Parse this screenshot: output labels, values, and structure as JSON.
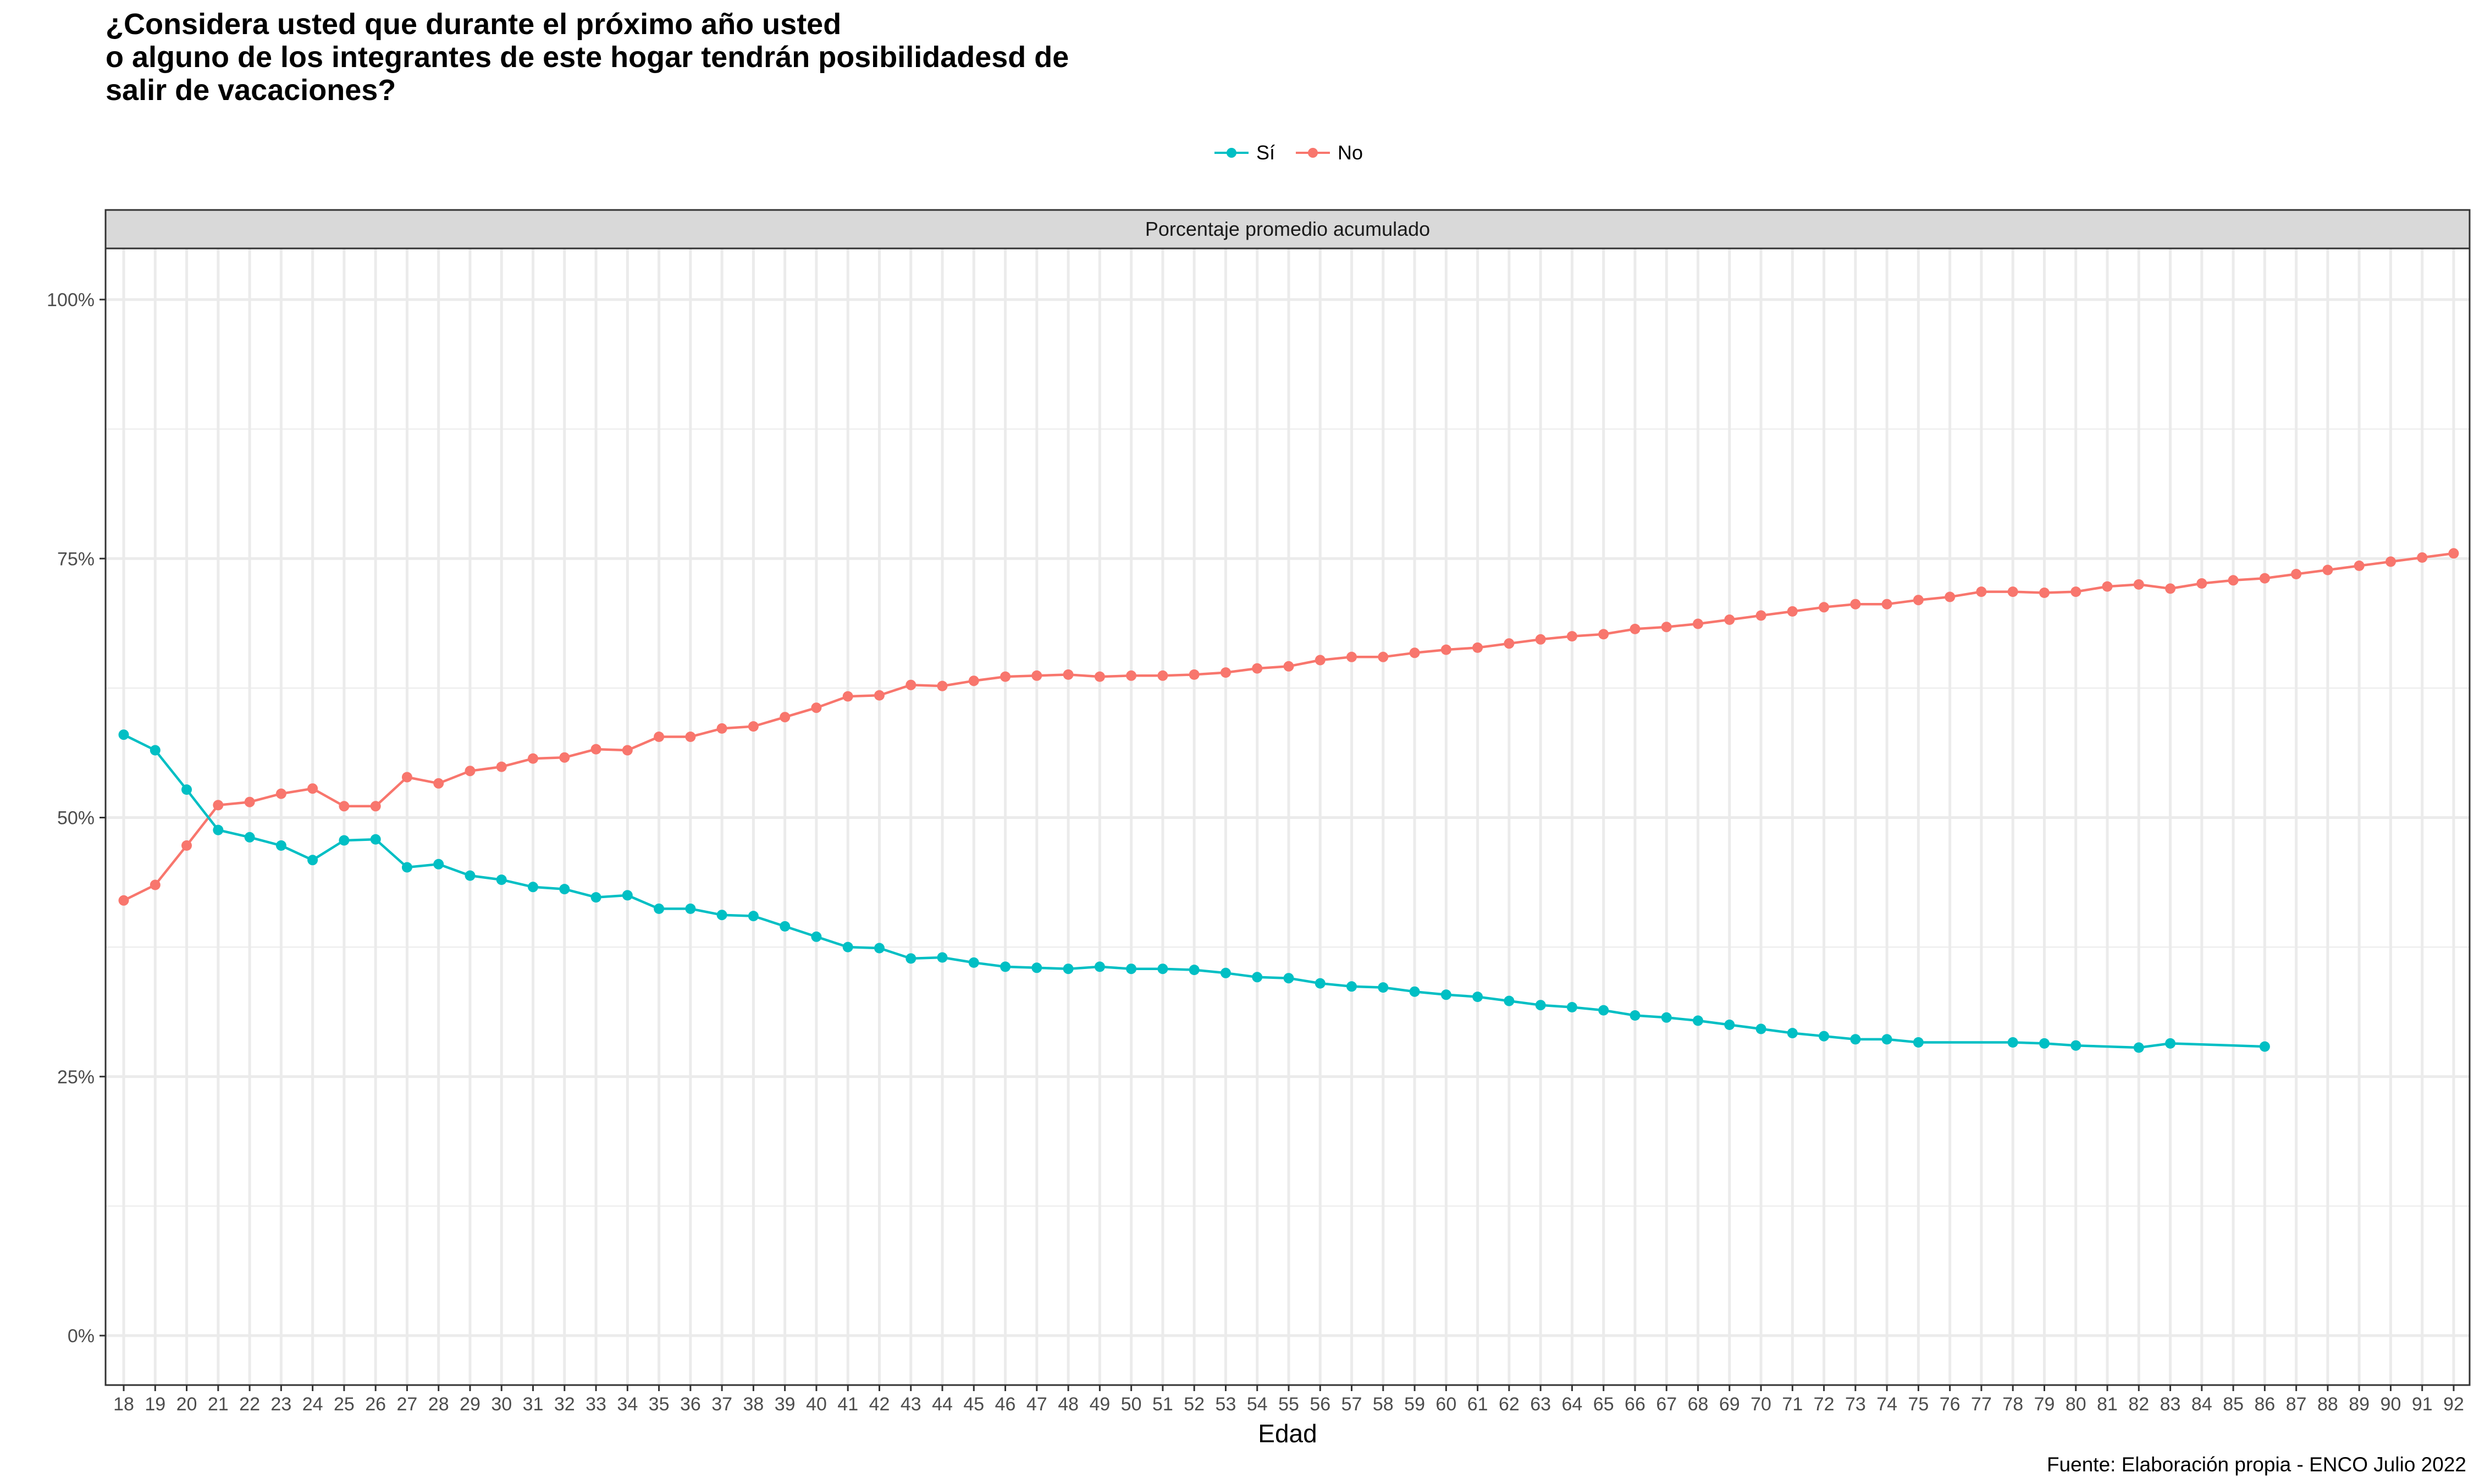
{
  "title_lines": [
    "¿Considera usted que durante el próximo año usted",
    "o alguno de los integrantes de este hogar tendrán posibilidadesd de",
    "salir de vacaciones?"
  ],
  "caption": "Fuente: Elaboración propia - ENCO Julio 2022",
  "colors": {
    "si": "#00BFC4",
    "no": "#F8766D",
    "grid": "#EBEBEB",
    "strip": "#D9D9D9",
    "panel_border": "#333333"
  },
  "chart_data": {
    "type": "line",
    "strip_label": "Porcentaje promedio acumulado",
    "xlabel": "Edad",
    "ylabel": "",
    "y_ticks": [
      "0%",
      "25%",
      "50%",
      "75%",
      "100%"
    ],
    "ylim": [
      0,
      1
    ],
    "x": [
      18,
      19,
      20,
      21,
      22,
      23,
      24,
      25,
      26,
      27,
      28,
      29,
      30,
      31,
      32,
      33,
      34,
      35,
      36,
      37,
      38,
      39,
      40,
      41,
      42,
      43,
      44,
      45,
      46,
      47,
      48,
      49,
      50,
      51,
      52,
      53,
      54,
      55,
      56,
      57,
      58,
      59,
      60,
      61,
      62,
      63,
      64,
      65,
      66,
      67,
      68,
      69,
      70,
      71,
      72,
      73,
      74,
      75,
      76,
      77,
      78,
      79,
      80,
      81,
      82,
      83,
      84,
      85,
      86,
      87,
      88,
      89,
      90,
      91,
      92
    ],
    "legend_position": "top",
    "series": [
      {
        "name": "Sí",
        "points": [
          [
            18,
            0.58
          ],
          [
            19,
            0.565
          ],
          [
            20,
            0.527
          ],
          [
            21,
            0.488
          ],
          [
            22,
            0.481
          ],
          [
            23,
            0.473
          ],
          [
            24,
            0.459
          ],
          [
            25,
            0.478
          ],
          [
            26,
            0.479
          ],
          [
            27,
            0.452
          ],
          [
            28,
            0.455
          ],
          [
            29,
            0.444
          ],
          [
            30,
            0.44
          ],
          [
            31,
            0.433
          ],
          [
            32,
            0.431
          ],
          [
            33,
            0.423
          ],
          [
            34,
            0.425
          ],
          [
            35,
            0.412
          ],
          [
            36,
            0.412
          ],
          [
            37,
            0.406
          ],
          [
            38,
            0.405
          ],
          [
            39,
            0.395
          ],
          [
            40,
            0.385
          ],
          [
            41,
            0.375
          ],
          [
            42,
            0.374
          ],
          [
            43,
            0.364
          ],
          [
            44,
            0.365
          ],
          [
            45,
            0.36
          ],
          [
            46,
            0.356
          ],
          [
            47,
            0.355
          ],
          [
            48,
            0.354
          ],
          [
            49,
            0.356
          ],
          [
            50,
            0.354
          ],
          [
            51,
            0.354
          ],
          [
            52,
            0.353
          ],
          [
            53,
            0.35
          ],
          [
            54,
            0.346
          ],
          [
            55,
            0.345
          ],
          [
            56,
            0.34
          ],
          [
            57,
            0.337
          ],
          [
            58,
            0.336
          ],
          [
            59,
            0.332
          ],
          [
            60,
            0.329
          ],
          [
            61,
            0.327
          ],
          [
            62,
            0.323
          ],
          [
            63,
            0.319
          ],
          [
            64,
            0.317
          ],
          [
            65,
            0.314
          ],
          [
            66,
            0.309
          ],
          [
            67,
            0.307
          ],
          [
            68,
            0.304
          ],
          [
            69,
            0.3
          ],
          [
            70,
            0.296
          ],
          [
            71,
            0.292
          ],
          [
            72,
            0.289
          ],
          [
            73,
            0.286
          ],
          [
            74,
            0.286
          ],
          [
            75,
            0.283
          ],
          [
            78,
            0.283
          ],
          [
            79,
            0.282
          ],
          [
            80,
            0.28
          ],
          [
            82,
            0.278
          ],
          [
            83,
            0.282
          ],
          [
            86,
            0.279
          ]
        ]
      },
      {
        "name": "No",
        "points": [
          [
            18,
            0.42
          ],
          [
            19,
            0.435
          ],
          [
            20,
            0.473
          ],
          [
            21,
            0.512
          ],
          [
            22,
            0.515
          ],
          [
            23,
            0.523
          ],
          [
            24,
            0.528
          ],
          [
            25,
            0.511
          ],
          [
            26,
            0.511
          ],
          [
            27,
            0.539
          ],
          [
            28,
            0.533
          ],
          [
            29,
            0.545
          ],
          [
            30,
            0.549
          ],
          [
            31,
            0.557
          ],
          [
            32,
            0.558
          ],
          [
            33,
            0.566
          ],
          [
            34,
            0.565
          ],
          [
            35,
            0.578
          ],
          [
            36,
            0.578
          ],
          [
            37,
            0.586
          ],
          [
            38,
            0.588
          ],
          [
            39,
            0.597
          ],
          [
            40,
            0.606
          ],
          [
            41,
            0.617
          ],
          [
            42,
            0.618
          ],
          [
            43,
            0.628
          ],
          [
            44,
            0.627
          ],
          [
            45,
            0.632
          ],
          [
            46,
            0.636
          ],
          [
            47,
            0.637
          ],
          [
            48,
            0.638
          ],
          [
            49,
            0.636
          ],
          [
            50,
            0.637
          ],
          [
            51,
            0.637
          ],
          [
            52,
            0.638
          ],
          [
            53,
            0.64
          ],
          [
            54,
            0.644
          ],
          [
            55,
            0.646
          ],
          [
            56,
            0.652
          ],
          [
            57,
            0.655
          ],
          [
            58,
            0.655
          ],
          [
            59,
            0.659
          ],
          [
            60,
            0.662
          ],
          [
            61,
            0.664
          ],
          [
            62,
            0.668
          ],
          [
            63,
            0.672
          ],
          [
            64,
            0.675
          ],
          [
            65,
            0.677
          ],
          [
            66,
            0.682
          ],
          [
            67,
            0.684
          ],
          [
            68,
            0.687
          ],
          [
            69,
            0.691
          ],
          [
            70,
            0.695
          ],
          [
            71,
            0.699
          ],
          [
            72,
            0.703
          ],
          [
            73,
            0.706
          ],
          [
            74,
            0.706
          ],
          [
            75,
            0.71
          ],
          [
            76,
            0.713
          ],
          [
            77,
            0.718
          ],
          [
            78,
            0.718
          ],
          [
            79,
            0.717
          ],
          [
            80,
            0.718
          ],
          [
            81,
            0.723
          ],
          [
            82,
            0.725
          ],
          [
            83,
            0.721
          ],
          [
            84,
            0.726
          ],
          [
            85,
            0.729
          ],
          [
            86,
            0.731
          ],
          [
            87,
            0.735
          ],
          [
            88,
            0.739
          ],
          [
            89,
            0.743
          ],
          [
            90,
            0.747
          ],
          [
            91,
            0.751
          ],
          [
            92,
            0.755
          ]
        ]
      }
    ]
  }
}
